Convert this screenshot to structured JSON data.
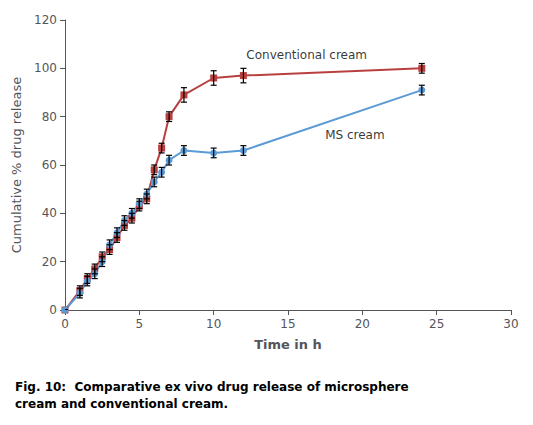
{
  "chart_data": {
    "type": "line",
    "xlabel": "Time in h",
    "ylabel": "Cumulative % drug release",
    "caption": [
      "Fig. 10:  Comparative ex vivo drug release of microsphere",
      "cream and conventional cream."
    ],
    "xlim": [
      0,
      30
    ],
    "ylim": [
      0,
      120
    ],
    "xticks": [
      0,
      5,
      10,
      15,
      20,
      25,
      30
    ],
    "yticks": [
      0,
      20,
      40,
      60,
      80,
      100,
      120
    ],
    "series": [
      {
        "color": "#b84040",
        "marker": "square",
        "x": [
          0,
          1,
          1.5,
          2,
          2.5,
          3,
          3.5,
          4,
          4.5,
          5,
          5.5,
          6,
          6.5,
          7,
          8,
          10,
          12,
          24
        ],
        "values": [
          0,
          8,
          13,
          17,
          22,
          25,
          30,
          35,
          38,
          43,
          46,
          58,
          67,
          80,
          89,
          96,
          97,
          100
        ],
        "yerr": [
          0,
          2,
          2,
          2,
          2,
          2,
          2,
          2,
          2,
          2,
          2,
          2,
          2,
          2,
          3,
          3,
          3,
          2
        ]
      },
      {
        "color": "#5b9bd5",
        "marker": "circle",
        "x": [
          0,
          1,
          1.5,
          2,
          2.5,
          3,
          3.5,
          4,
          4.5,
          5,
          5.5,
          6,
          6.5,
          7,
          8,
          10,
          12,
          24
        ],
        "values": [
          0,
          7,
          12,
          15,
          20,
          27,
          32,
          37,
          40,
          44,
          48,
          53,
          57,
          62,
          66,
          65,
          66,
          91
        ],
        "yerr": [
          0,
          2,
          2,
          2,
          2,
          2,
          2,
          2,
          2,
          2,
          2,
          2,
          2,
          2,
          2,
          2,
          2,
          2
        ]
      }
    ],
    "annotations": [
      {
        "text": "Conventional cream",
        "x": 12.2,
        "y": 103
      },
      {
        "text": "MS cream",
        "x": 17.5,
        "y": 70
      }
    ]
  }
}
